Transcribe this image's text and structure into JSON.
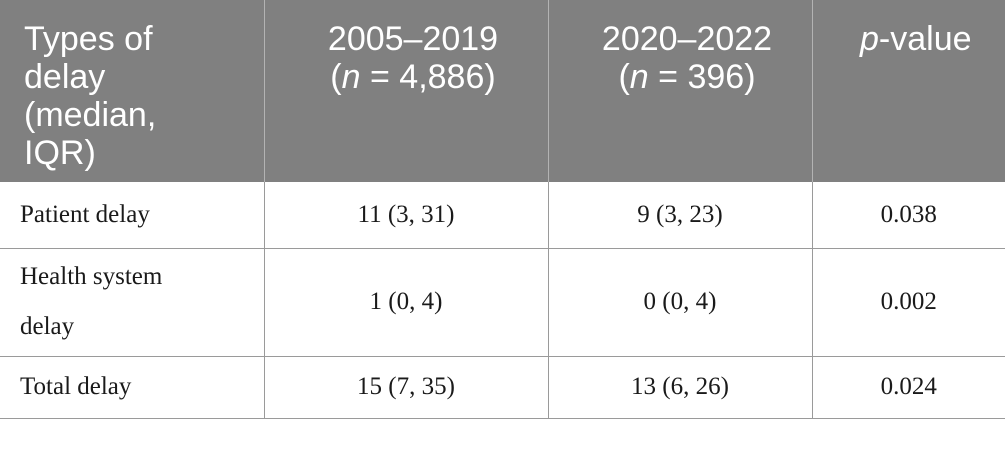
{
  "table": {
    "headers": {
      "col1": "Types of delay (median, IQR)",
      "col2_years": "2005–2019",
      "col2_n_prefix": "(",
      "col2_n_var": "n",
      "col2_n_value": " = 4,886)",
      "col3_years": "2020–2022",
      "col3_n_prefix": "(",
      "col3_n_var": "n",
      "col3_n_value": " = 396)",
      "col4_var": "p",
      "col4_suffix": "-value"
    },
    "rows": [
      {
        "label": "Patient delay",
        "v2005_2019": "11 (3, 31)",
        "v2020_2022": "9 (3, 23)",
        "p": "0.038"
      },
      {
        "label": "Health system delay",
        "v2005_2019": "1 (0, 4)",
        "v2020_2022": "0 (0, 4)",
        "p": "0.002"
      },
      {
        "label": "Total delay",
        "v2005_2019": "15 (7, 35)",
        "v2020_2022": "13 (6, 26)",
        "p": "0.024"
      }
    ]
  }
}
